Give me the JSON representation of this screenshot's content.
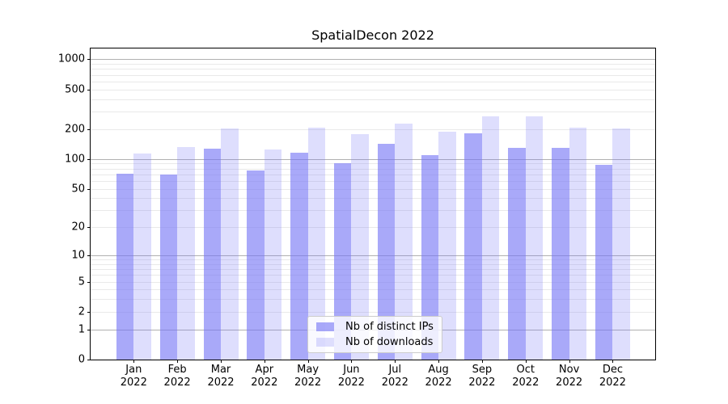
{
  "title": "SpatialDecon 2022",
  "chart_data": {
    "type": "bar",
    "title": "SpatialDecon 2022",
    "categories": [
      "Jan",
      "Feb",
      "Mar",
      "Apr",
      "May",
      "Jun",
      "Jul",
      "Aug",
      "Sep",
      "Oct",
      "Nov",
      "Dec"
    ],
    "year": "2022",
    "series": [
      {
        "name": "Nb of distinct IPs",
        "values": [
          71,
          70,
          126,
          77,
          115,
          91,
          142,
          109,
          182,
          130,
          130,
          88
        ]
      },
      {
        "name": "Nb of downloads",
        "values": [
          113,
          133,
          202,
          125,
          205,
          179,
          227,
          188,
          268,
          270,
          206,
          201
        ]
      }
    ],
    "yscale": "log10(1+x)",
    "ylim": [
      0,
      1280
    ],
    "ytick_values": [
      0,
      1,
      2,
      5,
      10,
      20,
      50,
      100,
      200,
      500,
      1000
    ],
    "major_gridline_values": [
      1,
      10,
      100,
      1000
    ],
    "minor_gridline_values": [
      2,
      3,
      4,
      5,
      6,
      7,
      8,
      9,
      20,
      30,
      40,
      50,
      60,
      70,
      80,
      90,
      200,
      300,
      400,
      500,
      600,
      700,
      800,
      900
    ],
    "grid": true,
    "legend_position": "lower center"
  },
  "colors": {
    "bar_base": "#7474f6",
    "ips_bar": "rgba(116,116,246,0.62)",
    "downloads_bar": "rgba(116,116,246,0.24)",
    "major_grid": "#b0b0b0",
    "minor_grid": "#e9e9e9",
    "axis": "#000000"
  }
}
